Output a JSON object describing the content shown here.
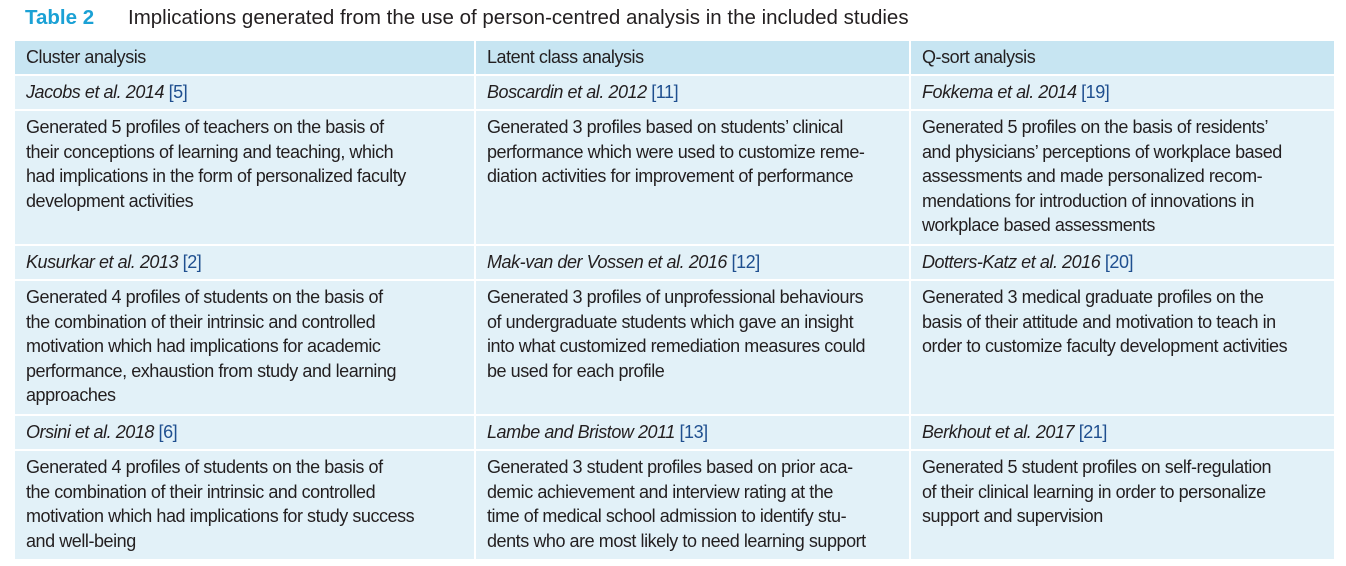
{
  "title": {
    "label": "Table 2",
    "text": "Implications generated from the use of person-centred analysis in the included studies"
  },
  "table": {
    "headers": [
      "Cluster analysis",
      "Latent class analysis",
      "Q-sort analysis"
    ],
    "rows": [
      {
        "cells": [
          {
            "author": "Jacobs et al. 2014",
            "ref": "[5]",
            "lines": [
              "Generated 5 profiles of teachers on the basis of",
              "their conceptions of learning and teaching, which",
              "had implications in the form of personalized faculty",
              "development activities"
            ]
          },
          {
            "author": "Boscardin et al. 2012",
            "ref": "[11]",
            "lines": [
              "Generated 3 profiles based on students’ clinical",
              "performance which were used to customize reme-",
              "diation activities for improvement of performance"
            ]
          },
          {
            "author": "Fokkema et al. 2014",
            "ref": "[19]",
            "lines": [
              "Generated 5 profiles on the basis of residents’",
              "and physicians’ perceptions of workplace based",
              "assessments and made personalized recom-",
              "mendations for introduction of innovations in",
              "workplace based assessments"
            ]
          }
        ]
      },
      {
        "cells": [
          {
            "author": "Kusurkar et al. 2013",
            "ref": "[2]",
            "lines": [
              "Generated 4 profiles of students on the basis of",
              "the combination of their intrinsic and controlled",
              "motivation which had implications for academic",
              "performance, exhaustion from study and learning",
              "approaches"
            ]
          },
          {
            "author": "Mak-van der Vossen et al. 2016",
            "ref": "[12]",
            "lines": [
              "Generated 3 profiles of unprofessional behaviours",
              "of undergraduate students which gave an insight",
              "into what customized remediation measures could",
              "be used for each profile"
            ]
          },
          {
            "author": "Dotters-Katz et al. 2016",
            "ref": "[20]",
            "lines": [
              "Generated 3 medical graduate profiles on the",
              "basis of their attitude and motivation to teach in",
              "order to customize faculty development activities"
            ]
          }
        ]
      },
      {
        "cells": [
          {
            "author": "Orsini et al. 2018",
            "ref": "[6]",
            "lines": [
              "Generated 4 profiles of students on the basis of",
              "the combination of their intrinsic and controlled",
              "motivation which had implications for study success",
              "and well-being"
            ]
          },
          {
            "author": "Lambe and Bristow 2011",
            "ref": "[13]",
            "lines": [
              "Generated 3 student profiles based on prior aca-",
              "demic achievement and interview rating at the",
              "time of medical school admission to identify stu-",
              "dents who are most likely to need learning support"
            ]
          },
          {
            "author": "Berkhout et al. 2017",
            "ref": "[21]",
            "lines": [
              "Generated 5 student profiles on self-regulation",
              "of their clinical learning in order to personalize",
              "support and supervision"
            ]
          }
        ]
      }
    ]
  }
}
